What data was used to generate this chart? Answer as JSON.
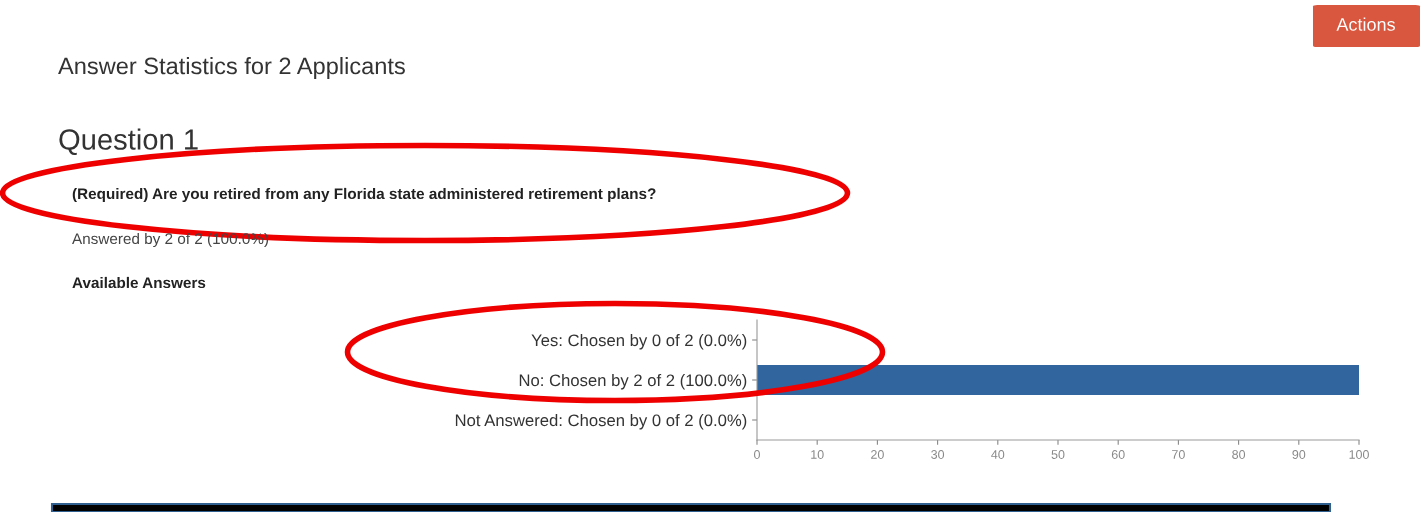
{
  "chart_data": {
    "type": "bar",
    "orientation": "horizontal",
    "title": "Answer Statistics for 2 Applicants",
    "subtitle": "Question 1",
    "annotations": [
      "(Required) Are you retired from any Florida state administered retirement plans?",
      "Answered by 2 of 2 (100.0%)",
      "Available Answers",
      "Actions"
    ],
    "categories": [
      "Yes: Chosen by 0 of 2 (0.0%)",
      "No: Chosen by 2 of 2 (100.0%)",
      "Not Answered: Chosen by 0 of 2 (0.0%)"
    ],
    "values": [
      0,
      100,
      0
    ],
    "color": "#31659e",
    "xlim": [
      0,
      100
    ],
    "xticks": [
      0,
      10,
      20,
      30,
      40,
      50,
      60,
      70,
      80,
      90,
      100
    ],
    "grid": false,
    "legend": false
  }
}
